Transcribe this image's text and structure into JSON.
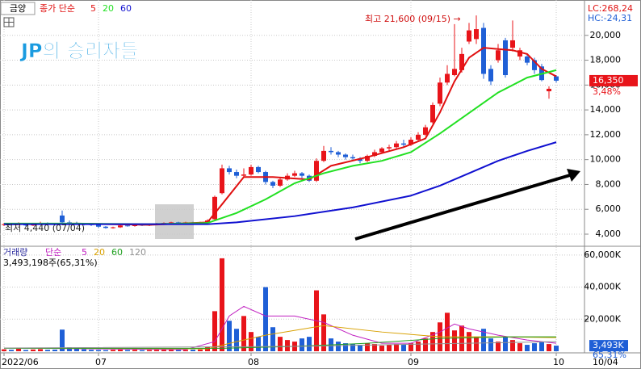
{
  "header": {
    "stock": "금양"
  },
  "chart_data": [
    {
      "type": "candlestick",
      "legend_label": "종가 단순",
      "overlay_text": "JP의 승리자들",
      "annotations": [
        "최고 21,600 (09/15) →",
        "최저 4,440 (07/04)"
      ],
      "lc_label": "LC:268,24",
      "hc_label": "HC:-24,31",
      "last_label": "16,350",
      "change_label": "3,48%",
      "up_color": "#e8141a",
      "down_color": "#1f5fd6",
      "open": [
        4750,
        4800,
        4750,
        4800,
        4700,
        4800,
        4900,
        4850,
        5500,
        4950,
        4900,
        4850,
        4800,
        4750,
        4600,
        4500,
        4550,
        4700,
        4650,
        4750,
        4700,
        4800,
        4850,
        4900,
        4950,
        4900,
        4950,
        4900,
        4950,
        5200,
        7300,
        9300,
        9000,
        8700,
        8800,
        9400,
        9000,
        8200,
        7900,
        8400,
        8700,
        8900,
        8700,
        8300,
        9900,
        10700,
        10600,
        10400,
        10200,
        10100,
        9900,
        10300,
        10600,
        10900,
        11000,
        11300,
        11200,
        11600,
        12000,
        13000,
        14500,
        16200,
        16800,
        17200,
        19500,
        19700,
        20600,
        17300,
        18000,
        19600,
        19000,
        18300,
        18300,
        18000,
        17500,
        15500,
        16700
      ],
      "high": [
        4900,
        4850,
        4950,
        4850,
        4900,
        5000,
        4950,
        4900,
        5900,
        5100,
        5000,
        4900,
        4850,
        4800,
        4650,
        4600,
        4750,
        4750,
        4800,
        4800,
        4850,
        4900,
        4950,
        5000,
        5000,
        5000,
        5000,
        5000,
        5200,
        7100,
        9600,
        9500,
        9200,
        9300,
        9600,
        9500,
        9100,
        8300,
        8600,
        8900,
        9100,
        9000,
        8800,
        10100,
        11100,
        11000,
        10700,
        10500,
        10400,
        10200,
        10400,
        10800,
        11000,
        11200,
        11500,
        11600,
        11800,
        12200,
        12800,
        14600,
        16600,
        17600,
        20900,
        19000,
        21000,
        21600,
        21000,
        17600,
        19300,
        19800,
        21200,
        19000,
        18500,
        18200,
        17700,
        15900,
        16800
      ],
      "low": [
        4650,
        4650,
        4700,
        4600,
        4650,
        4750,
        4800,
        4700,
        4900,
        4850,
        4800,
        4700,
        4650,
        4500,
        4440,
        4450,
        4500,
        4600,
        4600,
        4650,
        4650,
        4750,
        4800,
        4850,
        4850,
        4850,
        4850,
        4850,
        4900,
        5150,
        7200,
        8800,
        8500,
        8600,
        8700,
        8900,
        8000,
        7700,
        7800,
        8300,
        8600,
        8500,
        8200,
        8200,
        9800,
        10400,
        10200,
        10000,
        9900,
        9700,
        9800,
        10200,
        10500,
        10700,
        10900,
        11000,
        11100,
        11500,
        11900,
        12900,
        14300,
        16000,
        16700,
        17000,
        19300,
        19300,
        16500,
        16000,
        17800,
        16600,
        18700,
        18000,
        17600,
        16900,
        16300,
        14900,
        16200
      ],
      "close": [
        4800,
        4750,
        4850,
        4700,
        4800,
        4900,
        4850,
        4800,
        4950,
        4900,
        4850,
        4800,
        4750,
        4600,
        4500,
        4550,
        4700,
        4650,
        4750,
        4700,
        4800,
        4850,
        4900,
        4950,
        4900,
        4950,
        4900,
        4950,
        5100,
        7000,
        9300,
        9000,
        8700,
        8800,
        9400,
        9000,
        8200,
        7900,
        8400,
        8700,
        8900,
        8700,
        8300,
        9900,
        10700,
        10600,
        10400,
        10200,
        10100,
        9900,
        10300,
        10600,
        10900,
        11000,
        11300,
        11200,
        11600,
        12000,
        12600,
        14400,
        16200,
        16900,
        17300,
        18500,
        20400,
        20500,
        16900,
        16300,
        18800,
        16800,
        19600,
        18800,
        17800,
        17200,
        16400,
        15700,
        16350
      ],
      "series": [
        {
          "name": "5",
          "color": "#e01010",
          "x": [
            0,
            10,
            20,
            28,
            30,
            33,
            37,
            42,
            45,
            50,
            55,
            58,
            60,
            62,
            64,
            66,
            68,
            70,
            72,
            74,
            76
          ],
          "values": [
            4800,
            4850,
            4750,
            4950,
            6400,
            8600,
            8600,
            8400,
            9500,
            10200,
            11000,
            11700,
            13800,
            16300,
            18200,
            19000,
            18900,
            18800,
            18500,
            17300,
            16700
          ]
        },
        {
          "name": "20",
          "color": "#22e022",
          "x": [
            0,
            10,
            20,
            28,
            32,
            36,
            40,
            44,
            48,
            52,
            56,
            60,
            64,
            68,
            72,
            76
          ],
          "values": [
            4850,
            4850,
            4800,
            4900,
            5700,
            6800,
            8100,
            8900,
            9500,
            9900,
            10600,
            12100,
            13750,
            15400,
            16600,
            17200
          ]
        },
        {
          "name": "60",
          "color": "#1010d0",
          "x": [
            0,
            20,
            28,
            32,
            40,
            48,
            56,
            60,
            64,
            68,
            72,
            76
          ],
          "values": [
            4800,
            4800,
            4800,
            4950,
            5450,
            6150,
            7100,
            7900,
            8900,
            9900,
            10700,
            11400
          ]
        }
      ],
      "ylim": [
        3350,
        22650
      ],
      "yticks": [
        {
          "value": 4000,
          "label": "4,000"
        },
        {
          "value": 6000,
          "label": "6,000"
        },
        {
          "value": 8000,
          "label": "8,000"
        },
        {
          "value": 10000,
          "label": "10,000"
        },
        {
          "value": 12000,
          "label": "12,000"
        },
        {
          "value": 14000,
          "label": "14,000"
        },
        {
          "value": 16000,
          "label": "16,000"
        },
        {
          "value": 18000,
          "label": "18,000"
        },
        {
          "value": 20000,
          "label": "20,000"
        }
      ],
      "grid": true
    },
    {
      "type": "bar",
      "legend_label": "거래량",
      "sublabel": "단순",
      "info": "3,493,198주(65,31%)",
      "last_label": "3,493K",
      "ratio_label": "65,31%",
      "x_end_label": "10/04",
      "categories": [
        "2022/06",
        null,
        null,
        null,
        null,
        null,
        null,
        null,
        null,
        null,
        null,
        null,
        null,
        "07",
        null,
        null,
        null,
        null,
        null,
        null,
        null,
        null,
        null,
        null,
        null,
        null,
        null,
        null,
        null,
        null,
        null,
        null,
        null,
        null,
        "08",
        null,
        null,
        null,
        null,
        null,
        null,
        null,
        null,
        null,
        null,
        null,
        null,
        null,
        null,
        null,
        null,
        null,
        null,
        null,
        null,
        null,
        "09",
        null,
        null,
        null,
        null,
        null,
        null,
        null,
        null,
        null,
        null,
        null,
        null,
        null,
        null,
        null,
        null,
        null,
        null,
        null,
        "10"
      ],
      "values": [
        1200,
        900,
        1500,
        800,
        1100,
        1300,
        900,
        1000,
        13500,
        2500,
        1800,
        1200,
        900,
        800,
        700,
        900,
        1000,
        800,
        900,
        700,
        800,
        900,
        1000,
        1200,
        900,
        800,
        1000,
        1100,
        2500,
        25000,
        58000,
        19000,
        14000,
        22000,
        12000,
        9000,
        40000,
        15000,
        9000,
        7000,
        6000,
        8000,
        9000,
        38000,
        23000,
        8000,
        6000,
        5000,
        4500,
        4000,
        5000,
        4500,
        3500,
        4000,
        4500,
        4000,
        5000,
        6000,
        8000,
        12000,
        18000,
        24000,
        13000,
        16000,
        12000,
        9000,
        14000,
        8000,
        6000,
        9000,
        7000,
        5000,
        4000,
        5000,
        6000,
        4500,
        3493
      ],
      "series": [
        {
          "name": "5",
          "color": "#c020c0",
          "x": [
            0,
            25,
            29,
            31,
            33,
            36,
            40,
            44,
            48,
            52,
            56,
            60,
            62,
            64,
            68,
            72,
            76
          ],
          "values": [
            2000,
            1000,
            6000,
            22000,
            28000,
            22000,
            22000,
            18000,
            10000,
            5000,
            5000,
            12000,
            17000,
            14000,
            10000,
            7000,
            5000
          ]
        },
        {
          "name": "20",
          "color": "#d8a000",
          "x": [
            0,
            28,
            32,
            36,
            44,
            52,
            60,
            68,
            76
          ],
          "values": [
            2000,
            1500,
            6000,
            10000,
            16000,
            12000,
            9000,
            9000,
            8500
          ]
        },
        {
          "name": "60",
          "color": "#20a020",
          "x": [
            0,
            30,
            40,
            50,
            60,
            70,
            76
          ],
          "values": [
            1800,
            1800,
            3000,
            5000,
            8000,
            9000,
            9000
          ]
        },
        {
          "name": "120",
          "color": "#909090",
          "x": [
            0,
            40,
            76
          ],
          "values": [
            2000,
            3000,
            6000
          ]
        }
      ],
      "ylim": [
        0,
        64500
      ],
      "yticks": [
        {
          "value": 20000,
          "label": "20,000K"
        },
        {
          "value": 40000,
          "label": "40,000K"
        },
        {
          "value": 60000,
          "label": "60,000K"
        }
      ],
      "grid": true
    }
  ]
}
